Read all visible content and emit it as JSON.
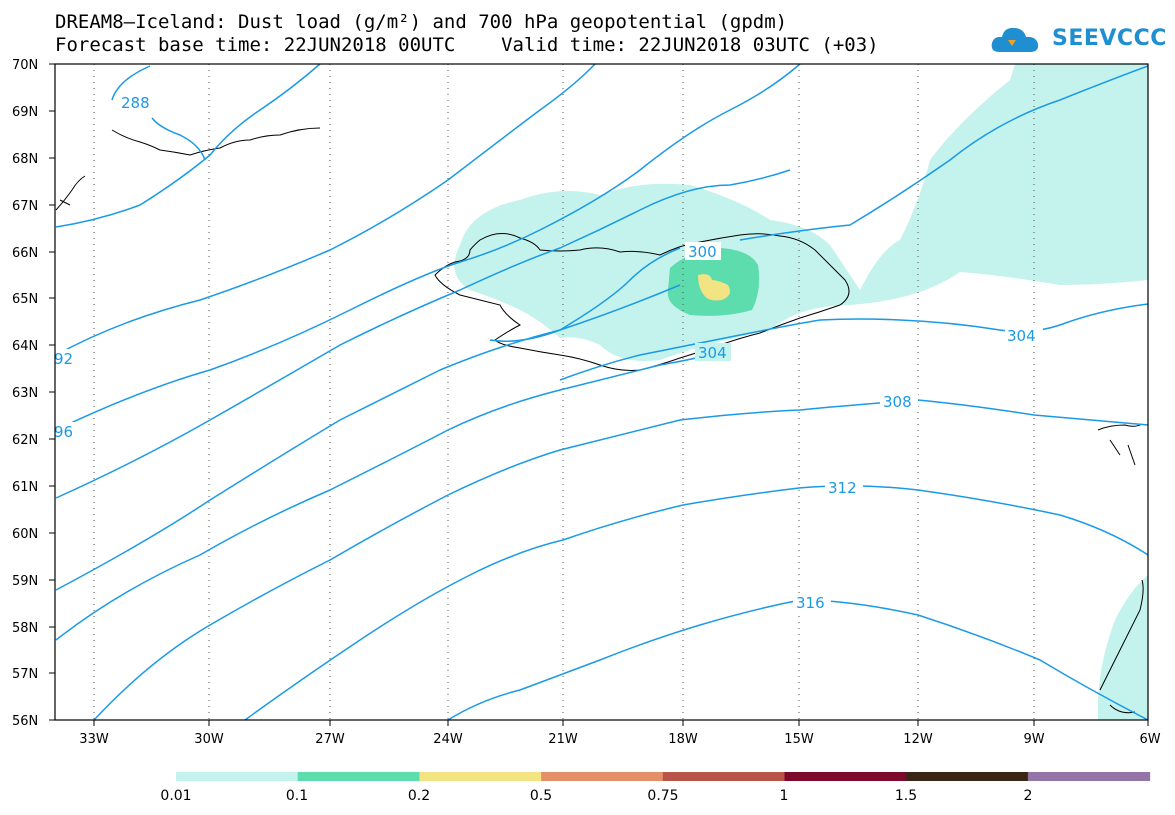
{
  "title_line1": "DREAM8–Iceland: Dust load (g/m²) and 700 hPa geopotential (gpdm)",
  "title_line2": "Forecast base time: 22JUN2018 00UTC    Valid time: 22JUN2018 03UTC (+03)",
  "logo_text": "SEEVCCC",
  "map": {
    "lon_range": [
      -34.5,
      -6
    ],
    "lat_range": [
      56,
      70
    ],
    "lat_labels": [
      "70N",
      "69N",
      "68N",
      "67N",
      "66N",
      "65N",
      "64N",
      "63N",
      "62N",
      "61N",
      "60N",
      "59N",
      "58N",
      "57N",
      "56N"
    ],
    "lon_labels": [
      "33W",
      "30W",
      "27W",
      "24W",
      "21W",
      "18W",
      "15W",
      "12W",
      "9W",
      "6W"
    ],
    "gridlines": "dotted",
    "contour_color": "#1a9ae6",
    "contour_labels": [
      "288",
      "92",
      "96",
      "300",
      "304",
      "304",
      "308",
      "312",
      "316"
    ]
  },
  "legend": {
    "labels": [
      "0.01",
      "0.1",
      "0.2",
      "0.5",
      "0.75",
      "1",
      "1.5",
      "2"
    ],
    "colors": [
      "#c4f2ec",
      "#5ddcad",
      "#f2e383",
      "#e3906a",
      "#b65548",
      "#7d0a2a",
      "#3b2616",
      "#9473a7"
    ]
  }
}
